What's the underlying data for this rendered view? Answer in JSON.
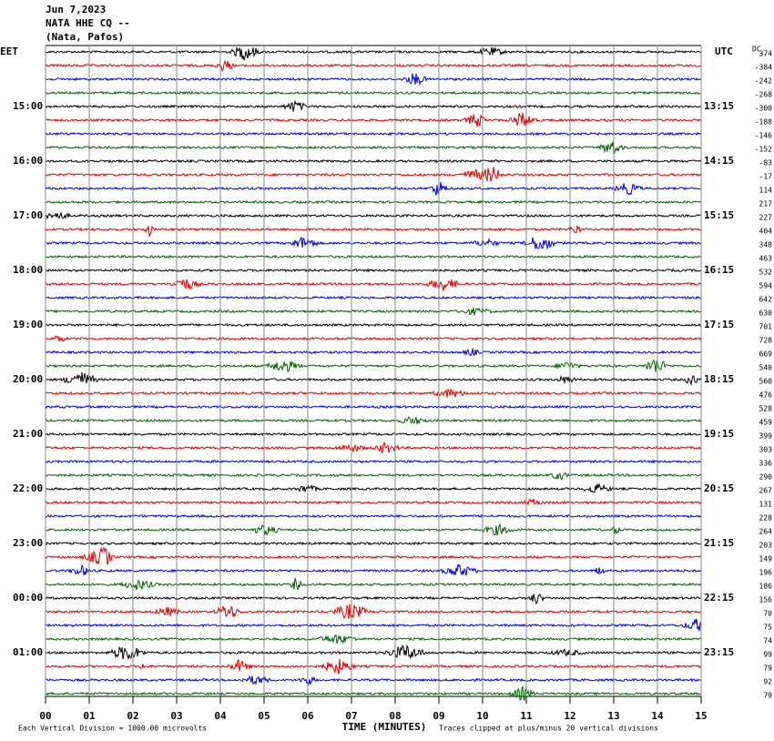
{
  "chart_data": {
    "type": "helicorder",
    "title_lines": [
      "Jun 7,2023",
      "NATA HHE CQ --",
      "(Nata, Pafos)"
    ],
    "left_axis_label": "EET",
    "right_axis_label": "UTC",
    "dc_label": "DC",
    "xlabel": "TIME (MINUTES)",
    "scale_note": "Each Vertical Division = 1000.00 microvolts",
    "clip_note": "Traces clipped at plus/minus 20 vertical divisions",
    "xlim": [
      0,
      15
    ],
    "xticks": [
      {
        "value": 0,
        "label": "00"
      },
      {
        "value": 1,
        "label": "01"
      },
      {
        "value": 2,
        "label": "02"
      },
      {
        "value": 3,
        "label": "03"
      },
      {
        "value": 4,
        "label": "04"
      },
      {
        "value": 5,
        "label": "05"
      },
      {
        "value": 6,
        "label": "06"
      },
      {
        "value": 7,
        "label": "07"
      },
      {
        "value": 8,
        "label": "08"
      },
      {
        "value": 9,
        "label": "09"
      },
      10,
      11,
      12,
      13,
      14,
      15
    ],
    "trace_colors": [
      "#000000",
      "#e00000",
      "#0000dd",
      "#006400"
    ],
    "left_time_labels": [
      "15:00",
      "16:00",
      "17:00",
      "18:00",
      "19:00",
      "20:00",
      "21:00",
      "22:00",
      "23:00",
      "00:00",
      "01:00"
    ],
    "right_time_labels": [
      "13:15",
      "14:15",
      "15:15",
      "16:15",
      "17:15",
      "18:15",
      "19:15",
      "20:15",
      "21:15",
      "22:15",
      "23:15"
    ],
    "dc_offsets": [
      374,
      -384,
      -242,
      -268,
      -300,
      -188,
      -146,
      -152,
      -83,
      -17,
      114,
      217,
      227,
      404,
      348,
      463,
      532,
      594,
      642,
      630,
      701,
      728,
      669,
      540,
      560,
      476,
      528,
      459,
      399,
      303,
      336,
      290,
      267,
      131,
      228,
      264,
      203,
      149,
      196,
      186,
      156,
      70,
      75,
      74,
      99,
      79,
      92,
      79
    ]
  }
}
